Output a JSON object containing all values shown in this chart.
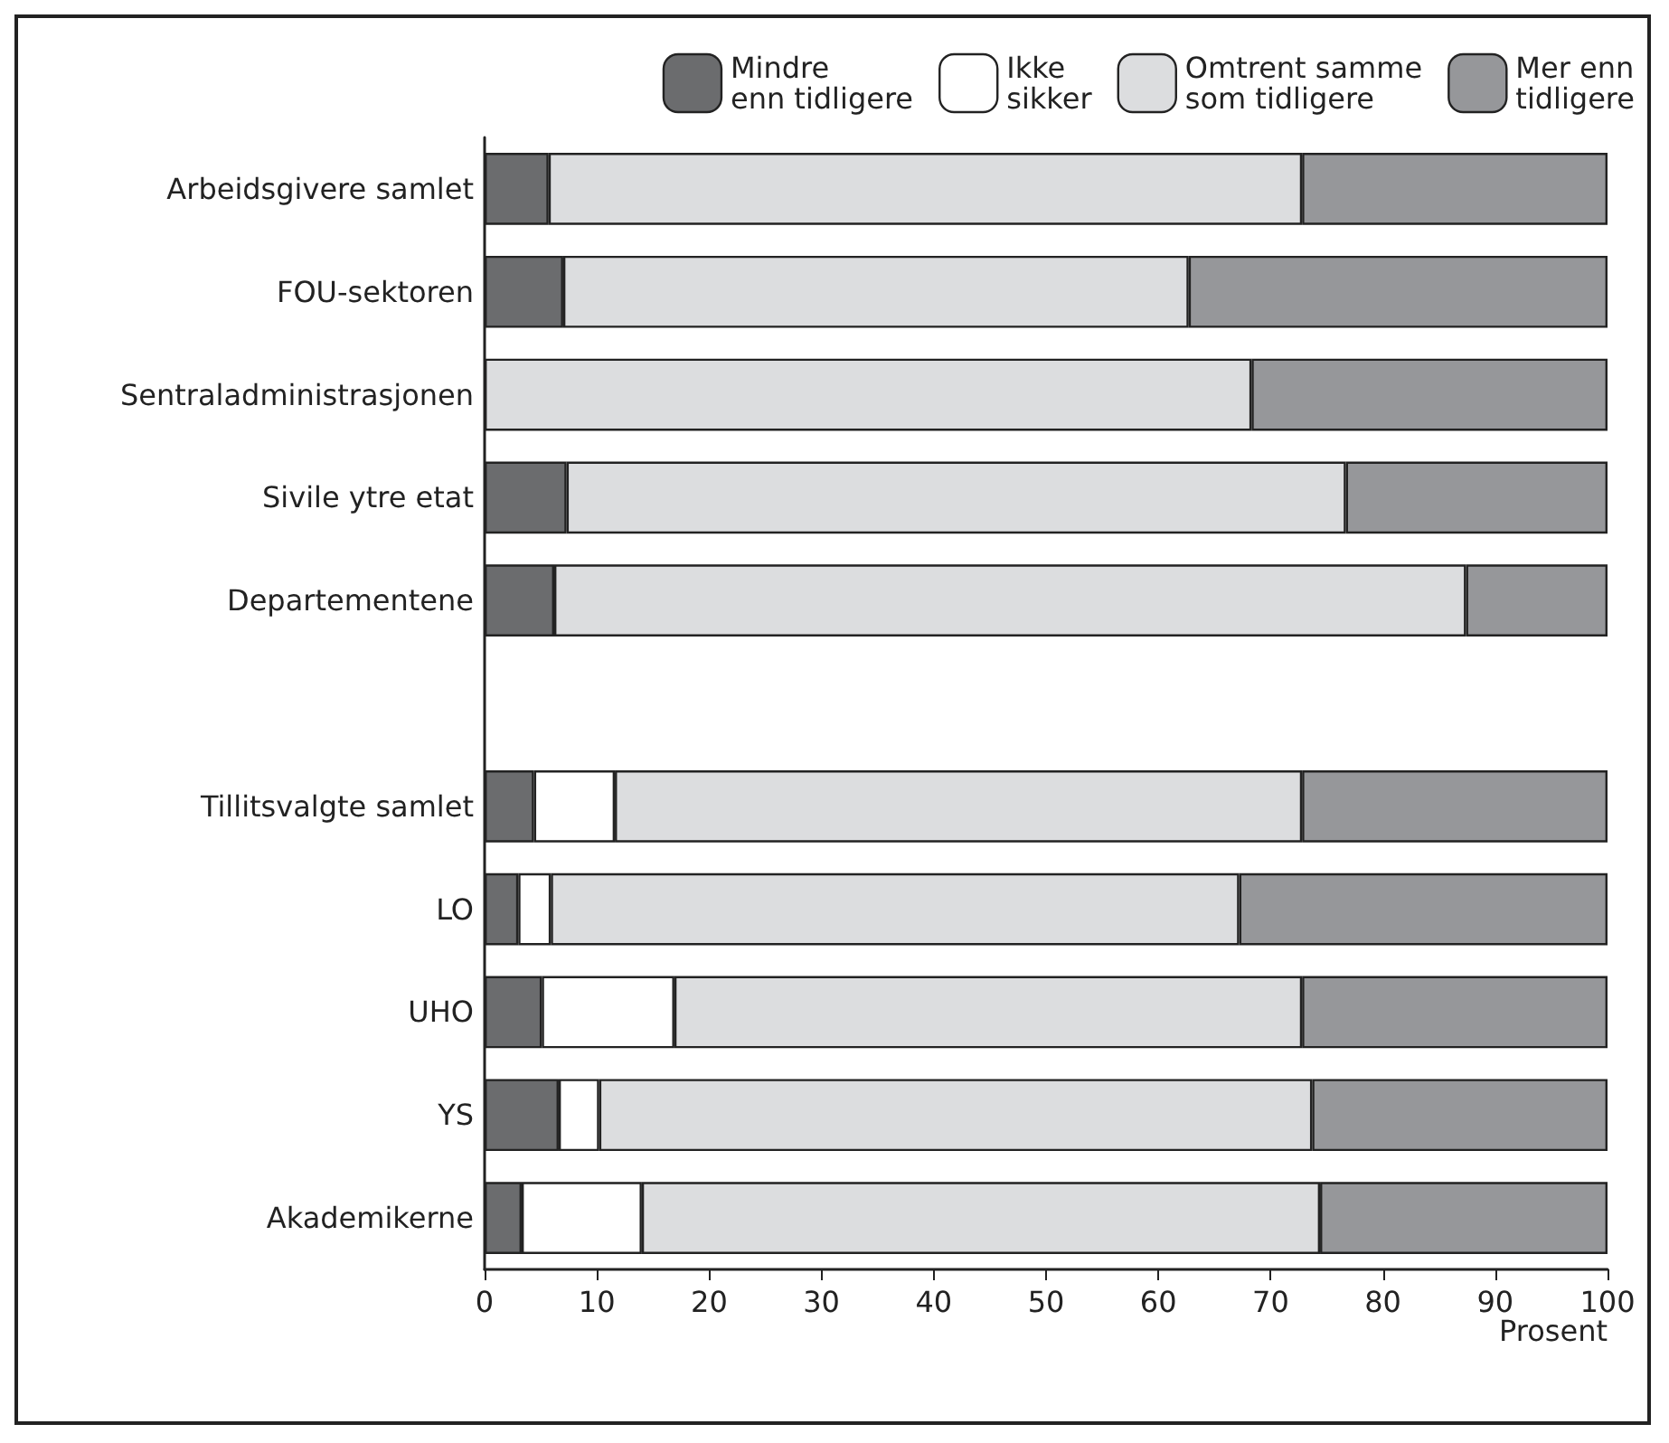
{
  "chart_data": {
    "type": "bar",
    "orientation": "horizontal",
    "stacked": true,
    "xlabel": "Prosent",
    "legend": "top right",
    "grid": false,
    "categories": [
      "Arbeidsgivere samlet",
      "FOU-sektoren",
      "Sentraladministrasjonen",
      "Sivile ytre etat",
      "Departementene",
      null,
      "Tillitsvalgte samlet",
      "LO",
      "UHO",
      "YS",
      "Akademikerne"
    ],
    "xlim": [
      0,
      100
    ],
    "xticks": [
      0,
      10,
      20,
      30,
      40,
      50,
      60,
      70,
      80,
      90,
      100
    ],
    "series": [
      {
        "name": "Mindre\nenn tidligere",
        "color": "#6b6c6e",
        "values": [
          5.7,
          7.0,
          null,
          7.3,
          6.2,
          null,
          4.4,
          3.0,
          5.1,
          6.6,
          3.3
        ]
      },
      {
        "name": "Ikke\nsikker",
        "color": "#ffffff",
        "values": [
          null,
          null,
          null,
          null,
          null,
          null,
          7.2,
          2.9,
          11.8,
          3.6,
          10.7
        ]
      },
      {
        "name": "Omtrent samme\nsom tidligere",
        "color": "#dcdddf",
        "values": [
          67.1,
          55.7,
          68.3,
          69.4,
          81.2,
          null,
          61.2,
          61.3,
          55.9,
          63.5,
          60.4
        ]
      },
      {
        "name": "Mer enn\ntidligere",
        "color": "#96979a",
        "values": [
          27.2,
          37.3,
          31.7,
          23.3,
          12.6,
          null,
          27.2,
          32.8,
          27.2,
          26.3,
          25.6
        ]
      }
    ]
  }
}
